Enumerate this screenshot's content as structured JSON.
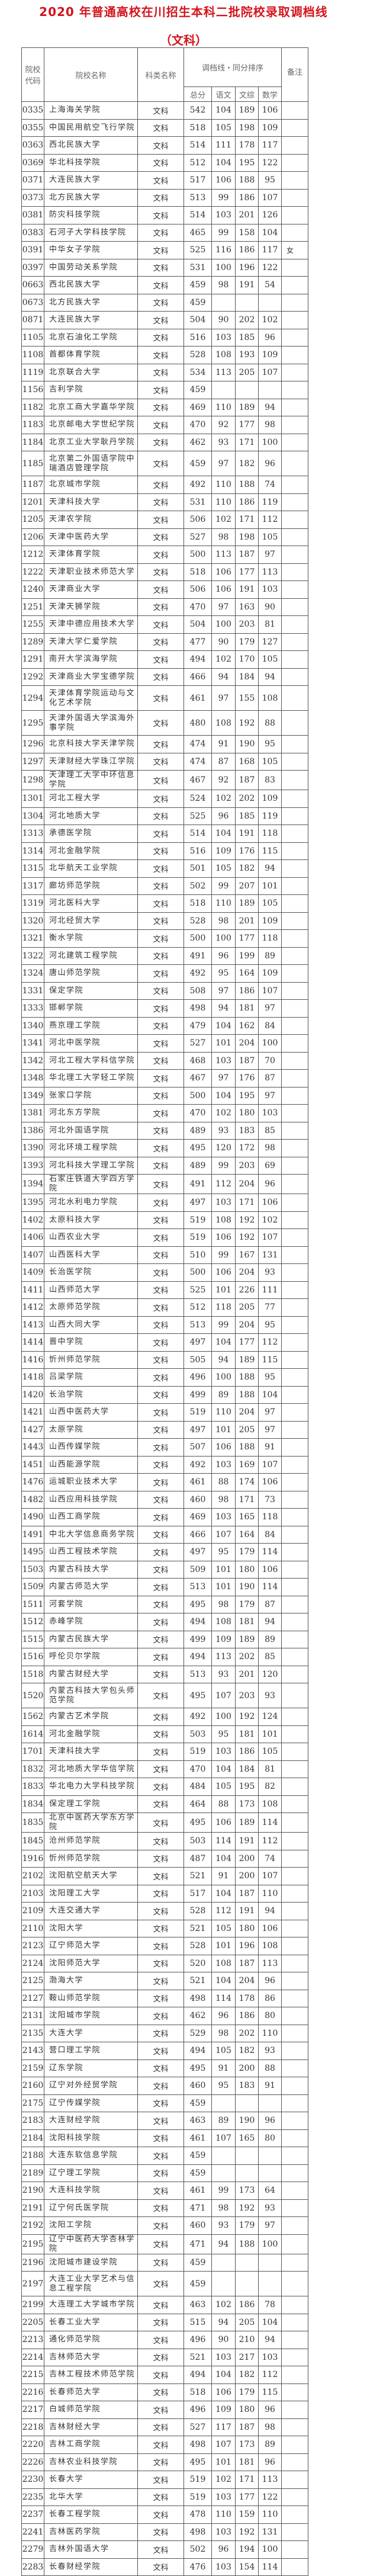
{
  "title": "2020 年普通高校在川招生本科二批院校录取调档线",
  "subtitle": "（文科）",
  "header": {
    "code": "院校代码",
    "name": "院校名称",
    "type": "科类名称",
    "group": "调档线・同分排序",
    "remark": "备注",
    "total": "总分",
    "chinese": "语文",
    "liberal_arts": "文综",
    "math": "数学"
  },
  "rows": [
    [
      "0335",
      "上海海关学院",
      "文科",
      "542",
      "104",
      "189",
      "106",
      ""
    ],
    [
      "0355",
      "中国民用航空飞行学院",
      "文科",
      "518",
      "105",
      "198",
      "109",
      ""
    ],
    [
      "0363",
      "西北民族大学",
      "文科",
      "514",
      "111",
      "178",
      "117",
      ""
    ],
    [
      "0369",
      "华北科技学院",
      "文科",
      "512",
      "104",
      "195",
      "122",
      ""
    ],
    [
      "0371",
      "大连民族大学",
      "文科",
      "517",
      "106",
      "188",
      "95",
      ""
    ],
    [
      "0373",
      "北方民族大学",
      "文科",
      "513",
      "99",
      "186",
      "107",
      ""
    ],
    [
      "0381",
      "防灾科技学院",
      "文科",
      "514",
      "103",
      "201",
      "126",
      ""
    ],
    [
      "0383",
      "石河子大学科技学院",
      "文科",
      "465",
      "99",
      "158",
      "104",
      ""
    ],
    [
      "0391",
      "中华女子学院",
      "文科",
      "525",
      "116",
      "186",
      "117",
      "女"
    ],
    [
      "0397",
      "中国劳动关系学院",
      "文科",
      "531",
      "100",
      "196",
      "122",
      ""
    ],
    [
      "0663",
      "西北民族大学",
      "文科",
      "459",
      "98",
      "191",
      "54",
      ""
    ],
    [
      "0673",
      "北方民族大学",
      "文科",
      "459",
      "",
      "",
      "",
      ""
    ],
    [
      "0871",
      "大连民族大学",
      "文科",
      "504",
      "90",
      "202",
      "102",
      ""
    ],
    [
      "1105",
      "北京石油化工学院",
      "文科",
      "516",
      "103",
      "185",
      "96",
      ""
    ],
    [
      "1108",
      "首都体育学院",
      "文科",
      "528",
      "108",
      "193",
      "109",
      ""
    ],
    [
      "1119",
      "北京联合大学",
      "文科",
      "534",
      "113",
      "205",
      "107",
      ""
    ],
    [
      "1156",
      "吉利学院",
      "文科",
      "459",
      "",
      "",
      "",
      ""
    ],
    [
      "1182",
      "北京工商大学嘉华学院",
      "文科",
      "469",
      "110",
      "189",
      "94",
      ""
    ],
    [
      "1183",
      "北京邮电大学世纪学院",
      "文科",
      "470",
      "92",
      "177",
      "98",
      ""
    ],
    [
      "1184",
      "北京工业大学耿丹学院",
      "文科",
      "462",
      "93",
      "171",
      "100",
      ""
    ],
    [
      "1185",
      "北京第二外国语学院中瑞酒店管理学院",
      "文科",
      "459",
      "97",
      "182",
      "96",
      ""
    ],
    [
      "1187",
      "北京城市学院",
      "文科",
      "492",
      "110",
      "188",
      "74",
      ""
    ],
    [
      "1201",
      "天津科技大学",
      "文科",
      "531",
      "110",
      "186",
      "119",
      ""
    ],
    [
      "1205",
      "天津农学院",
      "文科",
      "506",
      "102",
      "171",
      "112",
      ""
    ],
    [
      "1206",
      "天津中医药大学",
      "文科",
      "527",
      "98",
      "198",
      "105",
      ""
    ],
    [
      "1212",
      "天津体育学院",
      "文科",
      "500",
      "113",
      "187",
      "97",
      ""
    ],
    [
      "1222",
      "天津职业技术师范大学",
      "文科",
      "518",
      "106",
      "177",
      "113",
      ""
    ],
    [
      "1240",
      "天津商业大学",
      "文科",
      "506",
      "106",
      "191",
      "103",
      ""
    ],
    [
      "1251",
      "天津天狮学院",
      "文科",
      "470",
      "97",
      "163",
      "90",
      ""
    ],
    [
      "1255",
      "天津中德应用技术大学",
      "文科",
      "504",
      "100",
      "203",
      "81",
      ""
    ],
    [
      "1289",
      "天津大学仁爱学院",
      "文科",
      "477",
      "90",
      "179",
      "127",
      ""
    ],
    [
      "1291",
      "南开大学滨海学院",
      "文科",
      "494",
      "102",
      "170",
      "105",
      ""
    ],
    [
      "1292",
      "天津商业大学宝德学院",
      "文科",
      "466",
      "94",
      "184",
      "94",
      ""
    ],
    [
      "1294",
      "天津体育学院运动与文化艺术学院",
      "文科",
      "461",
      "97",
      "155",
      "108",
      ""
    ],
    [
      "1295",
      "天津外国语大学滨海外事学院",
      "文科",
      "480",
      "108",
      "192",
      "88",
      ""
    ],
    [
      "1296",
      "北京科技大学天津学院",
      "文科",
      "474",
      "91",
      "190",
      "95",
      ""
    ],
    [
      "1297",
      "天津财经大学珠江学院",
      "文科",
      "474",
      "87",
      "168",
      "105",
      ""
    ],
    [
      "1298",
      "天津理工大学中环信息学院",
      "文科",
      "467",
      "92",
      "187",
      "83",
      ""
    ],
    [
      "1301",
      "河北工程大学",
      "文科",
      "524",
      "102",
      "202",
      "109",
      ""
    ],
    [
      "1304",
      "河北地质大学",
      "文科",
      "525",
      "96",
      "185",
      "119",
      ""
    ],
    [
      "1313",
      "承德医学院",
      "文科",
      "514",
      "104",
      "191",
      "118",
      ""
    ],
    [
      "1314",
      "河北金融学院",
      "文科",
      "516",
      "109",
      "176",
      "115",
      ""
    ],
    [
      "1315",
      "北华航天工业学院",
      "文科",
      "501",
      "105",
      "182",
      "94",
      ""
    ],
    [
      "1317",
      "廊坊师范学院",
      "文科",
      "502",
      "99",
      "207",
      "101",
      ""
    ],
    [
      "1319",
      "河北医科大学",
      "文科",
      "518",
      "110",
      "189",
      "105",
      ""
    ],
    [
      "1320",
      "河北经贸大学",
      "文科",
      "528",
      "98",
      "201",
      "109",
      ""
    ],
    [
      "1321",
      "衡水学院",
      "文科",
      "500",
      "100",
      "177",
      "118",
      ""
    ],
    [
      "1322",
      "河北建筑工程学院",
      "文科",
      "491",
      "96",
      "199",
      "89",
      ""
    ],
    [
      "1324",
      "唐山师范学院",
      "文科",
      "492",
      "95",
      "164",
      "109",
      ""
    ],
    [
      "1331",
      "保定学院",
      "文科",
      "508",
      "97",
      "186",
      "107",
      ""
    ],
    [
      "1333",
      "邯郸学院",
      "文科",
      "498",
      "94",
      "181",
      "97",
      ""
    ],
    [
      "1340",
      "燕京理工学院",
      "文科",
      "479",
      "104",
      "162",
      "84",
      ""
    ],
    [
      "1341",
      "河北中医学院",
      "文科",
      "527",
      "101",
      "204",
      "100",
      ""
    ],
    [
      "1342",
      "河北工程大学科信学院",
      "文科",
      "468",
      "103",
      "187",
      "70",
      ""
    ],
    [
      "1348",
      "华北理工大学轻工学院",
      "文科",
      "467",
      "97",
      "176",
      "87",
      ""
    ],
    [
      "1349",
      "张家口学院",
      "文科",
      "500",
      "104",
      "195",
      "97",
      ""
    ],
    [
      "1381",
      "河北东方学院",
      "文科",
      "470",
      "102",
      "180",
      "103",
      ""
    ],
    [
      "1386",
      "河北外国语学院",
      "文科",
      "489",
      "93",
      "183",
      "85",
      ""
    ],
    [
      "1390",
      "河北环境工程学院",
      "文科",
      "495",
      "120",
      "172",
      "98",
      ""
    ],
    [
      "1393",
      "河北科技大学理工学院",
      "文科",
      "489",
      "99",
      "203",
      "69",
      ""
    ],
    [
      "1394",
      "石家庄铁道大学四方学院",
      "文科",
      "491",
      "112",
      "204",
      "96",
      ""
    ],
    [
      "1395",
      "河北水利电力学院",
      "文科",
      "497",
      "103",
      "171",
      "106",
      ""
    ],
    [
      "1402",
      "太原科技大学",
      "文科",
      "519",
      "108",
      "192",
      "102",
      ""
    ],
    [
      "1406",
      "山西农业大学",
      "文科",
      "519",
      "106",
      "192",
      "107",
      ""
    ],
    [
      "1407",
      "山西医科大学",
      "文科",
      "510",
      "99",
      "167",
      "131",
      ""
    ],
    [
      "1409",
      "长治医学院",
      "文科",
      "500",
      "106",
      "204",
      "93",
      ""
    ],
    [
      "1411",
      "山西师范大学",
      "文科",
      "525",
      "101",
      "226",
      "111",
      ""
    ],
    [
      "1412",
      "太原师范学院",
      "文科",
      "512",
      "118",
      "205",
      "77",
      ""
    ],
    [
      "1413",
      "山西大同大学",
      "文科",
      "513",
      "99",
      "204",
      "95",
      ""
    ],
    [
      "1414",
      "晋中学院",
      "文科",
      "497",
      "104",
      "177",
      "112",
      ""
    ],
    [
      "1416",
      "忻州师范学院",
      "文科",
      "505",
      "94",
      "189",
      "115",
      ""
    ],
    [
      "1418",
      "吕梁学院",
      "文科",
      "496",
      "100",
      "188",
      "95",
      ""
    ],
    [
      "1420",
      "长治学院",
      "文科",
      "499",
      "89",
      "188",
      "104",
      ""
    ],
    [
      "1421",
      "山西中医药大学",
      "文科",
      "519",
      "110",
      "204",
      "97",
      ""
    ],
    [
      "1427",
      "太原学院",
      "文科",
      "497",
      "101",
      "205",
      "97",
      ""
    ],
    [
      "1443",
      "山西传媒学院",
      "文科",
      "507",
      "106",
      "188",
      "91",
      ""
    ],
    [
      "1451",
      "山西能源学院",
      "文科",
      "492",
      "103",
      "169",
      "107",
      ""
    ],
    [
      "1476",
      "运城职业技术大学",
      "文科",
      "461",
      "88",
      "174",
      "106",
      ""
    ],
    [
      "1482",
      "山西应用科技学院",
      "文科",
      "460",
      "98",
      "171",
      "73",
      ""
    ],
    [
      "1490",
      "山西工商学院",
      "文科",
      "469",
      "103",
      "165",
      "118",
      ""
    ],
    [
      "1491",
      "中北大学信息商务学院",
      "文科",
      "466",
      "107",
      "164",
      "84",
      ""
    ],
    [
      "1495",
      "山西工程技术学院",
      "文科",
      "497",
      "95",
      "179",
      "114",
      ""
    ],
    [
      "1503",
      "内蒙古科技大学",
      "文科",
      "509",
      "101",
      "180",
      "106",
      ""
    ],
    [
      "1509",
      "内蒙古师范大学",
      "文科",
      "513",
      "101",
      "190",
      "114",
      ""
    ],
    [
      "1511",
      "河套学院",
      "文科",
      "495",
      "98",
      "179",
      "87",
      ""
    ],
    [
      "1512",
      "赤峰学院",
      "文科",
      "494",
      "108",
      "181",
      "94",
      ""
    ],
    [
      "1515",
      "内蒙古民族大学",
      "文科",
      "499",
      "109",
      "189",
      "89",
      ""
    ],
    [
      "1516",
      "呼伦贝尔学院",
      "文科",
      "494",
      "113",
      "202",
      "85",
      ""
    ],
    [
      "1518",
      "内蒙古财经大学",
      "文科",
      "513",
      "93",
      "201",
      "120",
      ""
    ],
    [
      "1520",
      "内蒙古科技大学包头师范学院",
      "文科",
      "495",
      "107",
      "203",
      "93",
      ""
    ],
    [
      "1562",
      "内蒙古艺术学院",
      "文科",
      "492",
      "100",
      "192",
      "124",
      ""
    ],
    [
      "1614",
      "河北金融学院",
      "文科",
      "503",
      "95",
      "181",
      "101",
      ""
    ],
    [
      "1701",
      "天津科技大学",
      "文科",
      "519",
      "103",
      "186",
      "105",
      ""
    ],
    [
      "1832",
      "河北地质大学华信学院",
      "文科",
      "470",
      "104",
      "184",
      "81",
      ""
    ],
    [
      "1833",
      "华北电力大学科技学院",
      "文科",
      "484",
      "105",
      "195",
      "82",
      ""
    ],
    [
      "1834",
      "保定理工学院",
      "文科",
      "464",
      "88",
      "173",
      "108",
      ""
    ],
    [
      "1835",
      "北京中医药大学东方学院",
      "文科",
      "495",
      "106",
      "189",
      "114",
      ""
    ],
    [
      "1845",
      "沧州师范学院",
      "文科",
      "503",
      "114",
      "191",
      "112",
      ""
    ],
    [
      "1916",
      "忻州师范学院",
      "文科",
      "487",
      "104",
      "200",
      "74",
      ""
    ],
    [
      "2102",
      "沈阳航空航天大学",
      "文科",
      "521",
      "91",
      "200",
      "107",
      ""
    ],
    [
      "2103",
      "沈阳理工大学",
      "文科",
      "517",
      "104",
      "187",
      "110",
      ""
    ],
    [
      "2109",
      "大连交通大学",
      "文科",
      "528",
      "112",
      "191",
      "94",
      ""
    ],
    [
      "2110",
      "沈阳大学",
      "文科",
      "521",
      "105",
      "180",
      "106",
      ""
    ],
    [
      "2123",
      "辽宁师范大学",
      "文科",
      "528",
      "101",
      "196",
      "108",
      ""
    ],
    [
      "2124",
      "沈阳师范大学",
      "文科",
      "520",
      "108",
      "187",
      "113",
      ""
    ],
    [
      "2125",
      "渤海大学",
      "文科",
      "521",
      "104",
      "204",
      "96",
      ""
    ],
    [
      "2127",
      "鞍山师范学院",
      "文科",
      "498",
      "114",
      "178",
      "86",
      ""
    ],
    [
      "2131",
      "沈阳城市学院",
      "文科",
      "462",
      "96",
      "186",
      "80",
      ""
    ],
    [
      "2135",
      "大连大学",
      "文科",
      "529",
      "98",
      "202",
      "110",
      ""
    ],
    [
      "2143",
      "营口理工学院",
      "文科",
      "494",
      "105",
      "182",
      "93",
      ""
    ],
    [
      "2159",
      "辽东学院",
      "文科",
      "495",
      "91",
      "200",
      "88",
      ""
    ],
    [
      "2160",
      "辽宁对外经贸学院",
      "文科",
      "460",
      "95",
      "183",
      "91",
      ""
    ],
    [
      "2175",
      "辽宁传媒学院",
      "文科",
      "459",
      "",
      "",
      "",
      ""
    ],
    [
      "2183",
      "大连财经学院",
      "文科",
      "463",
      "89",
      "190",
      "96",
      ""
    ],
    [
      "2184",
      "沈阳科技学院",
      "文科",
      "461",
      "107",
      "165",
      "80",
      ""
    ],
    [
      "2188",
      "大连东软信息学院",
      "文科",
      "459",
      "",
      "",
      "",
      ""
    ],
    [
      "2189",
      "辽宁理工学院",
      "文科",
      "459",
      "",
      "",
      "",
      ""
    ],
    [
      "2190",
      "大连科技学院",
      "文科",
      "461",
      "99",
      "173",
      "64",
      ""
    ],
    [
      "2191",
      "辽宁何氏医学院",
      "文科",
      "471",
      "98",
      "192",
      "93",
      ""
    ],
    [
      "2192",
      "沈阳工学院",
      "文科",
      "460",
      "93",
      "179",
      "97",
      ""
    ],
    [
      "2195",
      "辽宁中医药大学杏林学院",
      "文科",
      "471",
      "94",
      "188",
      "100",
      ""
    ],
    [
      "2196",
      "沈阳城市建设学院",
      "文科",
      "459",
      "",
      "",
      "",
      ""
    ],
    [
      "2197",
      "大连工业大学艺术与信息工程学院",
      "文科",
      "459",
      "",
      "",
      "",
      ""
    ],
    [
      "2199",
      "大连理工大学城市学院",
      "文科",
      "463",
      "102",
      "186",
      "78",
      ""
    ],
    [
      "2205",
      "长春工业大学",
      "文科",
      "515",
      "94",
      "205",
      "104",
      ""
    ],
    [
      "2213",
      "通化师范学院",
      "文科",
      "496",
      "90",
      "210",
      "94",
      ""
    ],
    [
      "2214",
      "吉林师范大学",
      "文科",
      "521",
      "103",
      "217",
      "103",
      ""
    ],
    [
      "2215",
      "吉林工程技术师范学院",
      "文科",
      "494",
      "104",
      "182",
      "112",
      ""
    ],
    [
      "2216",
      "长春师范大学",
      "文科",
      "518",
      "106",
      "179",
      "115",
      ""
    ],
    [
      "2217",
      "白城师范学院",
      "文科",
      "496",
      "109",
      "180",
      "96",
      ""
    ],
    [
      "2218",
      "吉林财经大学",
      "文科",
      "527",
      "117",
      "187",
      "98",
      ""
    ],
    [
      "2220",
      "吉林工商学院",
      "文科",
      "498",
      "107",
      "173",
      "89",
      ""
    ],
    [
      "2226",
      "吉林农业科技学院",
      "文科",
      "495",
      "101",
      "181",
      "96",
      ""
    ],
    [
      "2230",
      "长春大学",
      "文科",
      "519",
      "102",
      "171",
      "113",
      ""
    ],
    [
      "2235",
      "北华大学",
      "文科",
      "519",
      "103",
      "177",
      "122",
      ""
    ],
    [
      "2237",
      "长春工程学院",
      "文科",
      "478",
      "110",
      "159",
      "110",
      ""
    ],
    [
      "2241",
      "吉林医药学院",
      "文科",
      "498",
      "103",
      "192",
      "131",
      ""
    ],
    [
      "2279",
      "吉林外国语大学",
      "文科",
      "502",
      "96",
      "194",
      "100",
      ""
    ],
    [
      "2283",
      "长春财经学院",
      "文科",
      "476",
      "103",
      "154",
      "114",
      ""
    ]
  ]
}
